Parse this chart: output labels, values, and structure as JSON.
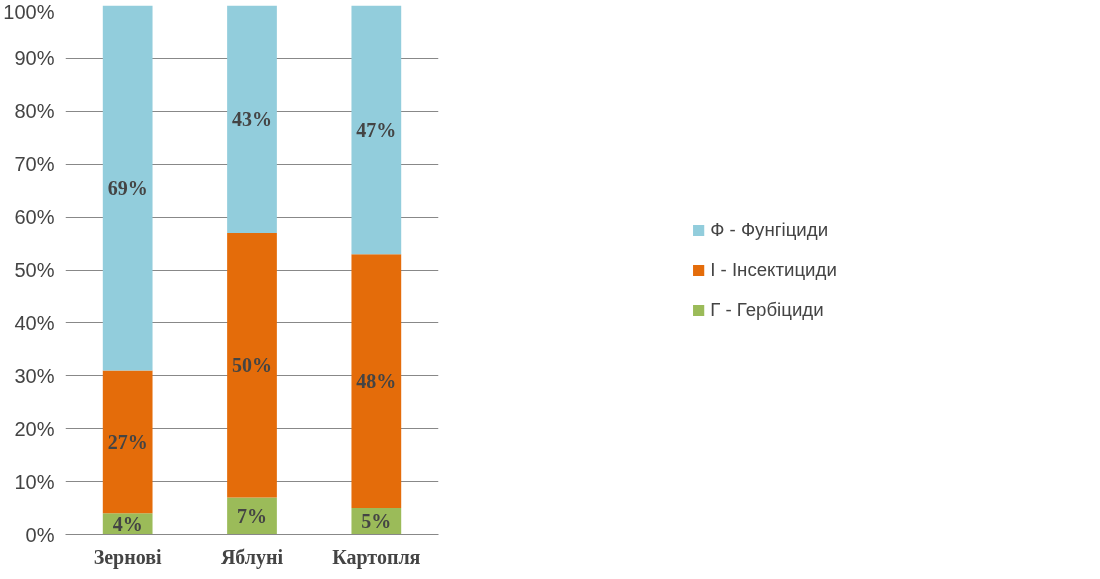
{
  "chart_data": {
    "type": "bar",
    "stacked": true,
    "categories": [
      "Зернові",
      "Яблуні",
      "Картопля"
    ],
    "series": [
      {
        "name": "Г - Гербіциди",
        "color": "#9bbb59",
        "values": [
          4,
          7,
          5
        ],
        "value_labels": [
          "4%",
          "7%",
          "5%"
        ]
      },
      {
        "name": "І - Інсектициди",
        "color": "#e46c0a",
        "values": [
          27,
          50,
          48
        ],
        "value_labels": [
          "27%",
          "50%",
          "48%"
        ]
      },
      {
        "name": "Ф - Фунгіциди",
        "color": "#92cddc",
        "values": [
          69,
          43,
          47
        ],
        "value_labels": [
          "69%",
          "43%",
          "47%"
        ]
      }
    ],
    "ylim": [
      0,
      100
    ],
    "yticks": [
      {
        "value": 0,
        "label": "0%"
      },
      {
        "value": 10,
        "label": "10%"
      },
      {
        "value": 20,
        "label": "20%"
      },
      {
        "value": 30,
        "label": "30%"
      },
      {
        "value": 40,
        "label": "40%"
      },
      {
        "value": 50,
        "label": "50%"
      },
      {
        "value": 60,
        "label": "60%"
      },
      {
        "value": 70,
        "label": "70%"
      },
      {
        "value": 80,
        "label": "80%"
      },
      {
        "value": 90,
        "label": "90%"
      },
      {
        "value": 100,
        "label": "100%"
      }
    ],
    "grid": "y",
    "legend": "right"
  }
}
